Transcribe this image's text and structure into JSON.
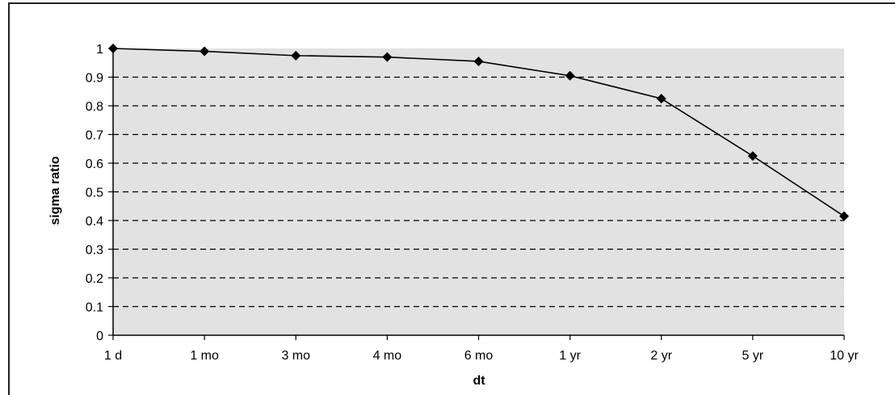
{
  "chart_data": {
    "type": "line",
    "title": "",
    "xlabel": "dt",
    "ylabel": "sigma ratio",
    "categories": [
      "1 d",
      "1 mo",
      "3 mo",
      "4 mo",
      "6 mo",
      "1 yr",
      "2 yr",
      "5 yr",
      "10 yr"
    ],
    "series": [
      {
        "values": [
          1.0,
          0.99,
          0.975,
          0.97,
          0.955,
          0.905,
          0.825,
          0.625,
          0.415
        ]
      }
    ],
    "ylim": [
      0,
      1
    ],
    "yticks": [
      "0",
      "0.1",
      "0.2",
      "0.3",
      "0.4",
      "0.5",
      "0.6",
      "0.7",
      "0.8",
      "0.9",
      "1"
    ],
    "grid": "horizontal dashed",
    "legend": "none",
    "colors": {
      "plot_background": "#e2e2e2",
      "line": "#000000",
      "marker": "#000000",
      "grid": "#000000"
    }
  }
}
